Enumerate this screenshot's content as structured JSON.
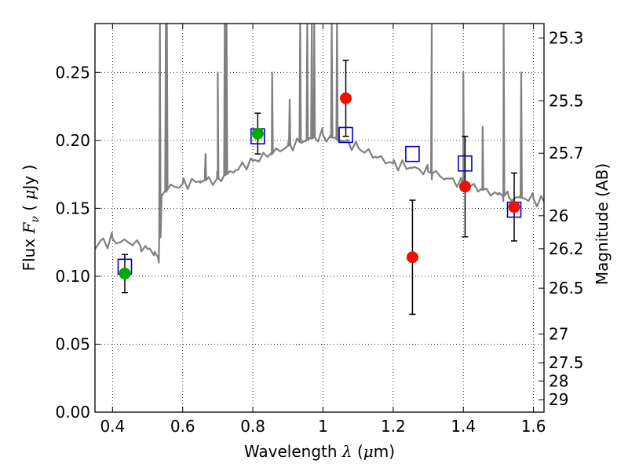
{
  "chart_data": {
    "type": "scatter",
    "xlabel": {
      "text": "Wavelength",
      "symbol": "λ",
      "unit_pre": "(",
      "unit_mu": "μ",
      "unit_post": "m)"
    },
    "ylabel": {
      "text": "Flux",
      "symbol": "F",
      "subscript": "ν",
      "unit_pre": "(",
      "unit_mu": "μ",
      "unit_post": "Jy )"
    },
    "y2label": "Magnitude (AB)",
    "xlim": [
      0.35,
      1.63
    ],
    "ylim": [
      0.0,
      0.286
    ],
    "xticks": [
      0.4,
      0.6,
      0.8,
      1.0,
      1.2,
      1.4,
      1.6
    ],
    "xtick_labels": [
      "0.4",
      "0.6",
      "0.8",
      "1",
      "1.2",
      "1.4",
      "1.6"
    ],
    "yticks": [
      0.0,
      0.05,
      0.1,
      0.15,
      0.2,
      0.25
    ],
    "ytick_labels": [
      "0.00",
      "0.05",
      "0.10",
      "0.15",
      "0.20",
      "0.25"
    ],
    "mag_ticks": [
      25.3,
      25.5,
      25.7,
      26,
      26.2,
      26.5,
      27,
      27.5,
      28,
      29
    ],
    "mag_tick_labels": [
      "25.3",
      "25.5",
      "25.7",
      "26",
      "26.2",
      "26.5",
      "27",
      "27.5",
      "28",
      "29"
    ],
    "grid": true,
    "colors": {
      "spectrum": "#808080",
      "green": "#00aa00",
      "red": "#ee1100",
      "model": "#0000cc",
      "error": "#000000"
    },
    "series": [
      {
        "kind": "model-photometry-squares",
        "points": [
          {
            "x": 0.435,
            "y": 0.107
          },
          {
            "x": 0.814,
            "y": 0.203
          },
          {
            "x": 1.065,
            "y": 0.204
          },
          {
            "x": 1.255,
            "y": 0.19
          },
          {
            "x": 1.405,
            "y": 0.183
          },
          {
            "x": 1.545,
            "y": 0.149
          }
        ]
      },
      {
        "kind": "observed-green",
        "points": [
          {
            "x": 0.435,
            "y": 0.102,
            "err": 0.014
          },
          {
            "x": 0.814,
            "y": 0.205,
            "err": 0.015
          }
        ]
      },
      {
        "kind": "observed-red",
        "points": [
          {
            "x": 1.065,
            "y": 0.231,
            "err": 0.028
          },
          {
            "x": 1.255,
            "y": 0.114,
            "err": 0.042
          },
          {
            "x": 1.405,
            "y": 0.166,
            "err": 0.037
          },
          {
            "x": 1.545,
            "y": 0.151,
            "err": 0.025
          }
        ]
      }
    ],
    "spectrum": {
      "continuum": [
        [
          0.35,
          0.121
        ],
        [
          0.365,
          0.126
        ],
        [
          0.38,
          0.124
        ],
        [
          0.4,
          0.128
        ],
        [
          0.42,
          0.125
        ],
        [
          0.44,
          0.126
        ],
        [
          0.46,
          0.124
        ],
        [
          0.48,
          0.122
        ],
        [
          0.5,
          0.12
        ],
        [
          0.52,
          0.118
        ],
        [
          0.532,
          0.11
        ],
        [
          0.54,
          0.16
        ],
        [
          0.56,
          0.165
        ],
        [
          0.6,
          0.168
        ],
        [
          0.65,
          0.17
        ],
        [
          0.7,
          0.172
        ],
        [
          0.75,
          0.178
        ],
        [
          0.8,
          0.185
        ],
        [
          0.85,
          0.19
        ],
        [
          0.9,
          0.196
        ],
        [
          0.95,
          0.2
        ],
        [
          1.0,
          0.204
        ],
        [
          1.05,
          0.2
        ],
        [
          1.1,
          0.195
        ],
        [
          1.15,
          0.188
        ],
        [
          1.2,
          0.183
        ],
        [
          1.25,
          0.18
        ],
        [
          1.3,
          0.177
        ],
        [
          1.35,
          0.172
        ],
        [
          1.4,
          0.168
        ],
        [
          1.45,
          0.164
        ],
        [
          1.5,
          0.16
        ],
        [
          1.53,
          0.158
        ],
        [
          1.56,
          0.158
        ],
        [
          1.6,
          0.157
        ],
        [
          1.63,
          0.155
        ]
      ],
      "lines": [
        [
          0.535,
          0.3
        ],
        [
          0.552,
          0.3
        ],
        [
          0.555,
          0.3
        ],
        [
          0.665,
          0.19
        ],
        [
          0.7,
          0.25
        ],
        [
          0.72,
          0.3
        ],
        [
          0.725,
          0.3
        ],
        [
          0.855,
          0.25
        ],
        [
          0.905,
          0.23
        ],
        [
          0.935,
          0.3
        ],
        [
          0.955,
          0.3
        ],
        [
          0.968,
          0.3
        ],
        [
          0.975,
          0.3
        ],
        [
          1.025,
          0.3
        ],
        [
          1.04,
          0.3
        ],
        [
          1.31,
          0.3
        ],
        [
          1.4,
          0.25
        ],
        [
          1.455,
          0.21
        ],
        [
          1.515,
          0.3
        ],
        [
          1.565,
          0.25
        ]
      ]
    }
  }
}
